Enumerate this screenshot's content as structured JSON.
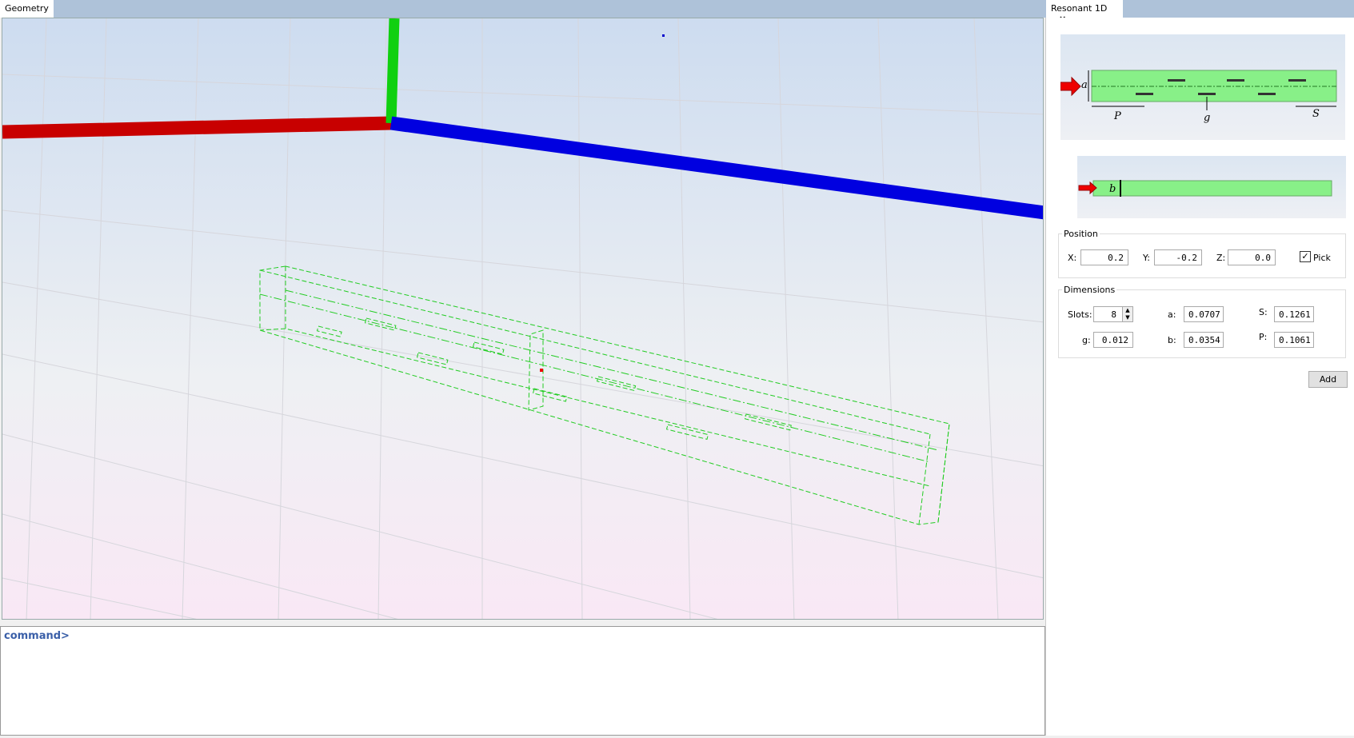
{
  "left_tabs": [
    {
      "label": "Geometry"
    }
  ],
  "right_tabs": [
    {
      "label": "Resonant 1D",
      "close": "×"
    }
  ],
  "command": {
    "prompt": "command>"
  },
  "diagram": {
    "a": "a",
    "P": "P",
    "g": "g",
    "S": "S",
    "b": "b"
  },
  "position": {
    "title": "Position",
    "x_label": "X:",
    "x": "0.2",
    "y_label": "Y:",
    "y": "-0.2",
    "z_label": "Z:",
    "z": "0.0",
    "pick_label": "Pick",
    "pick_checked": true
  },
  "dimensions": {
    "title": "Dimensions",
    "slots_label": "Slots:",
    "slots": "8",
    "a_label": "a:",
    "a": "0.0707",
    "s_label": "S:",
    "s": "0.1261",
    "g_label": "g:",
    "g": "0.012",
    "b_label": "b:",
    "b": "0.0354",
    "p_label": "P:",
    "p": "0.1061"
  },
  "add_label": "Add",
  "colors": {
    "x_axis": "#d00000",
    "y_axis": "#00cc00",
    "z_axis": "#0000e0",
    "wireframe": "#22cc22",
    "diagram_green": "#88f088"
  }
}
